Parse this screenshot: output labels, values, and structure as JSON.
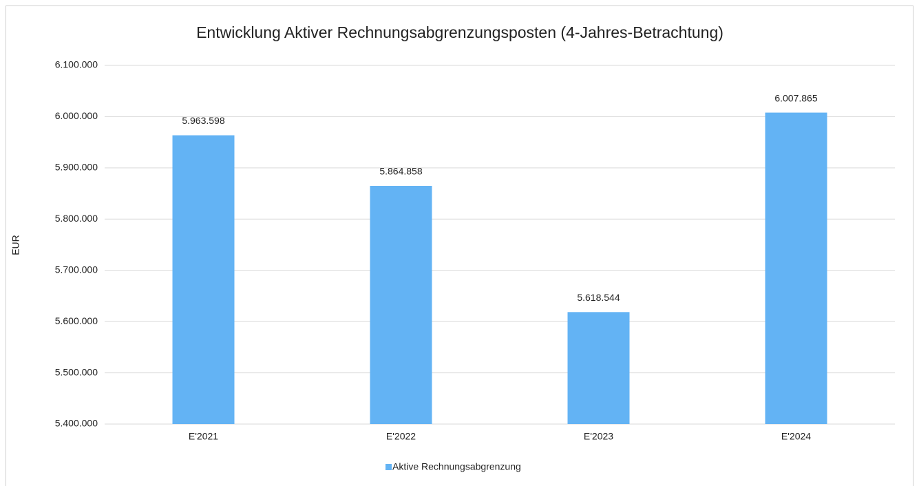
{
  "chart_data": {
    "type": "bar",
    "title": "Entwicklung Aktiver Rechnungsabgrenzungsposten (4-Jahres-Betrachtung)",
    "y_label": "EUR",
    "categories": [
      "E'2021",
      "E'2022",
      "E'2023",
      "E'2024"
    ],
    "series": [
      {
        "name": "Aktive Rechnungsabgrenzung",
        "color": "#63b3f4",
        "values": [
          5963598,
          5864858,
          5618544,
          6007865
        ],
        "value_labels": [
          "5.963.598",
          "5.864.858",
          "5.618.544",
          "6.007.865"
        ]
      }
    ],
    "ylim": [
      5400000,
      6100000
    ],
    "yticks": [
      {
        "value": 5400000,
        "label": "5.400.000"
      },
      {
        "value": 5500000,
        "label": "5.500.000"
      },
      {
        "value": 5600000,
        "label": "5.600.000"
      },
      {
        "value": 5700000,
        "label": "5.700.000"
      },
      {
        "value": 5800000,
        "label": "5.800.000"
      },
      {
        "value": 5900000,
        "label": "5.900.000"
      },
      {
        "value": 6000000,
        "label": "6.000.000"
      },
      {
        "value": 6100000,
        "label": "6.100.000"
      }
    ],
    "grid": true,
    "legend": "bottom"
  }
}
